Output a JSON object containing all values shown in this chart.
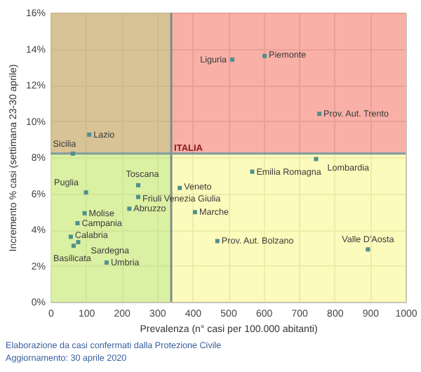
{
  "chart_data": {
    "type": "scatter",
    "xlabel": "Prevalenza (n° casi per 100.000 abitanti)",
    "ylabel": "Incremento % casi (settimana 23-30 aprile)",
    "x": [
      63,
      109,
      512,
      603,
      757,
      748,
      568,
      100,
      247,
      247,
      222,
      96,
      76,
      57,
      78,
      65,
      158,
      364,
      407,
      470,
      894
    ],
    "series": [
      {
        "color": "#4f8f8f",
        "values": [
          8.2,
          9.25,
          13.4,
          13.6,
          10.4,
          7.9,
          7.2,
          6.05,
          6.45,
          5.8,
          5.15,
          4.9,
          4.35,
          3.6,
          3.3,
          3.1,
          2.17,
          6.3,
          4.96,
          3.36,
          2.9
        ]
      }
    ],
    "xlim": [
      0,
      1000
    ],
    "ylim": [
      0,
      16
    ],
    "xticks": [
      0,
      100,
      200,
      300,
      400,
      500,
      600,
      700,
      800,
      900,
      1000
    ],
    "yticks": [
      {
        "value": 0,
        "label": "0%"
      },
      {
        "value": 2,
        "label": "2%"
      },
      {
        "value": 4,
        "label": "4%"
      },
      {
        "value": 6,
        "label": "6%"
      },
      {
        "value": 8,
        "label": "8%"
      },
      {
        "value": 10,
        "label": "10%"
      },
      {
        "value": 12,
        "label": "12%"
      },
      {
        "value": 14,
        "label": "14%"
      },
      {
        "value": 16,
        "label": "16%"
      }
    ],
    "grid": true,
    "marker": "square",
    "bands": [
      {
        "axis": "y",
        "from": 8.2,
        "to": 16,
        "color": "#f6968a"
      },
      {
        "axis": "y",
        "from": 0,
        "to": 8.2,
        "color": "#fcf9a6"
      },
      {
        "axis": "x",
        "from": 0,
        "to": 340,
        "color": "#a6e07e"
      }
    ],
    "ref_lines": [
      {
        "axis": "x",
        "value": 340,
        "color": "#7f8c8c"
      },
      {
        "axis": "y",
        "value": 8.2,
        "color": "#7f9c9c"
      }
    ],
    "annotations": [
      {
        "text": "Sicilia",
        "x": 63,
        "y": 8.2
      },
      {
        "text": "Lazio",
        "x": 109,
        "y": 9.25
      },
      {
        "text": "Liguria",
        "x": 512,
        "y": 13.4
      },
      {
        "text": "Piemonte",
        "x": 603,
        "y": 13.6
      },
      {
        "text": "Prov. Aut. Trento",
        "x": 757,
        "y": 10.4
      },
      {
        "text": "Lombardia",
        "x": 748,
        "y": 7.9
      },
      {
        "text": "Emilia Romagna",
        "x": 568,
        "y": 7.2
      },
      {
        "text": "Puglia",
        "x": 100,
        "y": 6.05
      },
      {
        "text": "Toscana",
        "x": 247,
        "y": 6.45
      },
      {
        "text": "Friuli Venezia Giulia",
        "x": 247,
        "y": 5.8
      },
      {
        "text": "Abruzzo",
        "x": 222,
        "y": 5.15
      },
      {
        "text": "Molise",
        "x": 96,
        "y": 4.9
      },
      {
        "text": "Campania",
        "x": 76,
        "y": 4.35
      },
      {
        "text": "Calabria",
        "x": 57,
        "y": 3.6
      },
      {
        "text": "Sardegna",
        "x": 78,
        "y": 3.3
      },
      {
        "text": "Basilicata",
        "x": 65,
        "y": 3.1
      },
      {
        "text": "Umbria",
        "x": 158,
        "y": 2.17
      },
      {
        "text": "Veneto",
        "x": 364,
        "y": 6.3
      },
      {
        "text": "Marche",
        "x": 407,
        "y": 4.96
      },
      {
        "text": "Prov. Aut. Bolzano",
        "x": 470,
        "y": 3.36
      },
      {
        "text": "Valle D'Aosta",
        "x": 894,
        "y": 2.9
      },
      {
        "text": "ITALIA",
        "x": 340,
        "y": 8.2
      },
      "Elaborazione da casi confermati dalla Protezione Civile",
      "Aggiornamento: 30 aprile 2020"
    ]
  }
}
